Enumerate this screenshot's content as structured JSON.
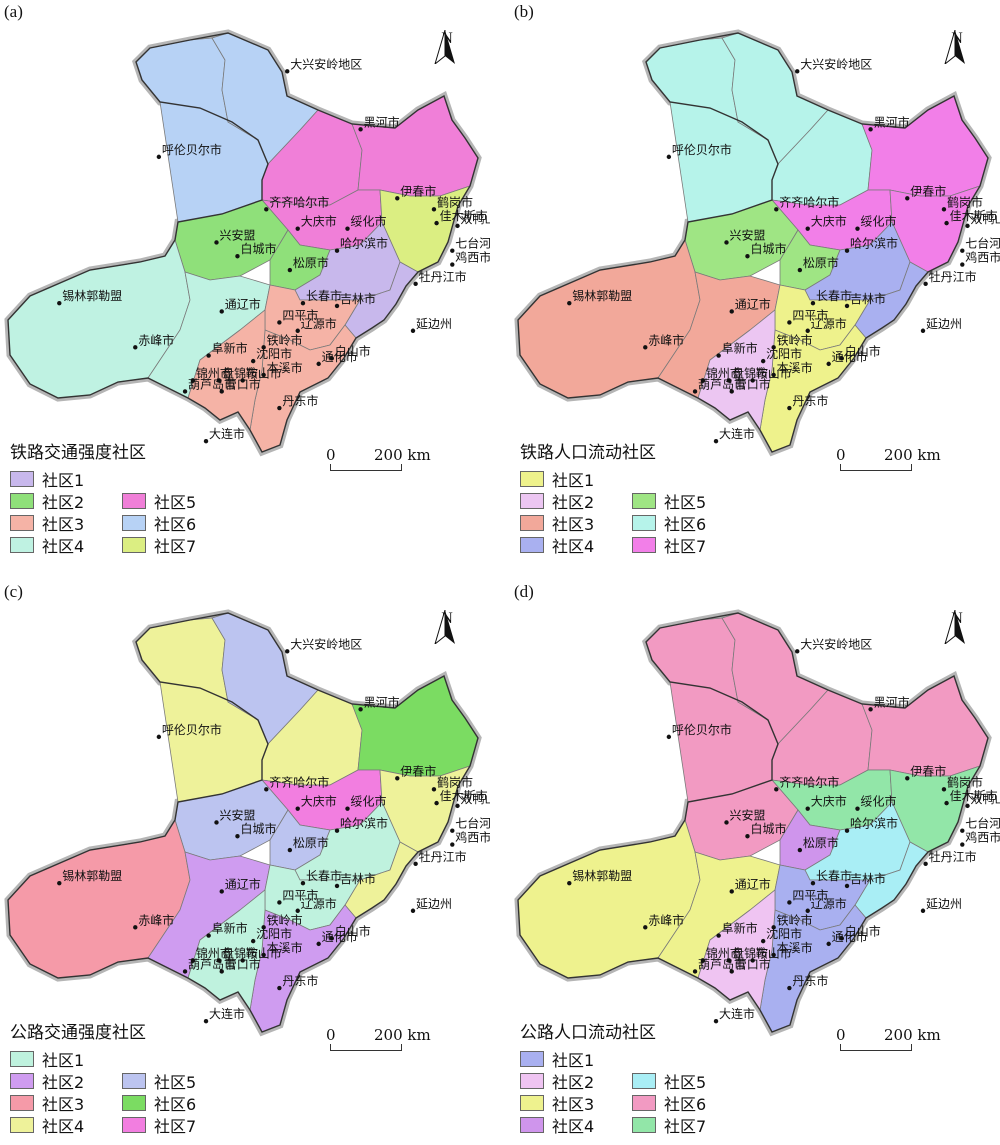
{
  "panels": [
    {
      "letter": "(a)",
      "legend_title": "铁路交通强度社区",
      "communities": [
        {
          "label": "社区1",
          "color": "#c8b8ec"
        },
        {
          "label": "社区2",
          "color": "#8fe07a"
        },
        {
          "label": "社区3",
          "color": "#f5b3a6"
        },
        {
          "label": "社区4",
          "color": "#bff2e2"
        },
        {
          "label": "社区5",
          "color": "#f07fd8"
        },
        {
          "label": "社区6",
          "color": "#b7d2f5"
        },
        {
          "label": "社区7",
          "color": "#dbee82"
        }
      ],
      "region_communities": [
        6,
        6,
        5,
        5,
        5,
        7,
        2,
        2,
        1,
        1,
        4,
        4,
        3,
        3,
        3
      ]
    },
    {
      "letter": "(b)",
      "legend_title": "铁路人口流动社区",
      "communities": [
        {
          "label": "社区1",
          "color": "#eef28c"
        },
        {
          "label": "社区2",
          "color": "#ecc6f2"
        },
        {
          "label": "社区3",
          "color": "#f2a89a"
        },
        {
          "label": "社区4",
          "color": "#a9b0f0"
        },
        {
          "label": "社区5",
          "color": "#9fe584"
        },
        {
          "label": "社区6",
          "color": "#b6f3ea"
        },
        {
          "label": "社区7",
          "color": "#f27fe8"
        }
      ],
      "region_communities": [
        6,
        6,
        6,
        7,
        7,
        7,
        5,
        5,
        4,
        4,
        3,
        3,
        1,
        1,
        2
      ]
    },
    {
      "letter": "(c)",
      "legend_title": "公路交通强度社区",
      "communities": [
        {
          "label": "社区1",
          "color": "#bff2de"
        },
        {
          "label": "社区2",
          "color": "#cf9cf0"
        },
        {
          "label": "社区3",
          "color": "#f59aa8"
        },
        {
          "label": "社区4",
          "color": "#eef29a"
        },
        {
          "label": "社区5",
          "color": "#bcc4f0"
        },
        {
          "label": "社区6",
          "color": "#7bdc62"
        },
        {
          "label": "社区7",
          "color": "#f27ee0"
        }
      ],
      "region_communities": [
        4,
        5,
        4,
        6,
        7,
        4,
        5,
        5,
        1,
        4,
        3,
        2,
        1,
        2,
        1
      ]
    },
    {
      "letter": "(d)",
      "legend_title": "公路人口流动社区",
      "communities": [
        {
          "label": "社区1",
          "color": "#a9b0f0"
        },
        {
          "label": "社区2",
          "color": "#efc4f2"
        },
        {
          "label": "社区3",
          "color": "#eef28e"
        },
        {
          "label": "社区4",
          "color": "#cf95ec"
        },
        {
          "label": "社区5",
          "color": "#a9eef5"
        },
        {
          "label": "社区6",
          "color": "#f29ac2"
        },
        {
          "label": "社区7",
          "color": "#92e6a8"
        }
      ],
      "region_communities": [
        6,
        6,
        6,
        6,
        7,
        7,
        6,
        4,
        5,
        5,
        3,
        3,
        1,
        1,
        2
      ]
    }
  ],
  "cities": [
    {
      "name": "大兴安岭地区",
      "lon": 124.7,
      "lat": 52.3
    },
    {
      "name": "黑河市",
      "lon": 127.5,
      "lat": 50.2
    },
    {
      "name": "呼伦贝尔市",
      "lon": 119.8,
      "lat": 49.2
    },
    {
      "name": "伊春市",
      "lon": 128.9,
      "lat": 47.7
    },
    {
      "name": "鹤岗市",
      "lon": 130.3,
      "lat": 47.3
    },
    {
      "name": "双鸭山市",
      "lon": 131.2,
      "lat": 46.7
    },
    {
      "name": "佳木斯市",
      "lon": 130.4,
      "lat": 46.8
    },
    {
      "name": "七台河市",
      "lon": 131.0,
      "lat": 45.8
    },
    {
      "name": "鸡西市",
      "lon": 131.0,
      "lat": 45.3
    },
    {
      "name": "齐齐哈尔市",
      "lon": 123.9,
      "lat": 47.3
    },
    {
      "name": "大庆市",
      "lon": 125.1,
      "lat": 46.6
    },
    {
      "name": "绥化市",
      "lon": 127.0,
      "lat": 46.6
    },
    {
      "name": "哈尔滨市",
      "lon": 126.6,
      "lat": 45.8
    },
    {
      "name": "牡丹江市",
      "lon": 129.6,
      "lat": 44.6
    },
    {
      "name": "兴安盟",
      "lon": 122.0,
      "lat": 46.1
    },
    {
      "name": "白城市",
      "lon": 122.8,
      "lat": 45.6
    },
    {
      "name": "松原市",
      "lon": 124.8,
      "lat": 45.1
    },
    {
      "name": "长春市",
      "lon": 125.3,
      "lat": 43.9
    },
    {
      "name": "吉林市",
      "lon": 126.6,
      "lat": 43.8
    },
    {
      "name": "延边州",
      "lon": 129.5,
      "lat": 42.9
    },
    {
      "name": "锡林郭勒盟",
      "lon": 116.0,
      "lat": 43.9
    },
    {
      "name": "通辽市",
      "lon": 122.2,
      "lat": 43.6
    },
    {
      "name": "四平市",
      "lon": 124.4,
      "lat": 43.2
    },
    {
      "name": "辽源市",
      "lon": 125.1,
      "lat": 42.9
    },
    {
      "name": "白山市",
      "lon": 126.4,
      "lat": 41.9
    },
    {
      "name": "通化市",
      "lon": 125.9,
      "lat": 41.7
    },
    {
      "name": "铁岭市",
      "lon": 123.8,
      "lat": 42.3
    },
    {
      "name": "赤峰市",
      "lon": 118.9,
      "lat": 42.3
    },
    {
      "name": "阜新市",
      "lon": 121.7,
      "lat": 42.0
    },
    {
      "name": "沈阳市",
      "lon": 123.4,
      "lat": 41.8
    },
    {
      "name": "本溪市",
      "lon": 123.8,
      "lat": 41.3
    },
    {
      "name": "盘锦市",
      "lon": 122.1,
      "lat": 41.1
    },
    {
      "name": "鞍山市",
      "lon": 123.0,
      "lat": 41.1
    },
    {
      "name": "锦州市",
      "lon": 121.1,
      "lat": 41.1
    },
    {
      "name": "营口市",
      "lon": 122.2,
      "lat": 40.7
    },
    {
      "name": "丹东市",
      "lon": 124.4,
      "lat": 40.1
    },
    {
      "name": "葫芦岛市",
      "lon": 120.8,
      "lat": 40.7
    },
    {
      "name": "大连市",
      "lon": 121.6,
      "lat": 38.9
    }
  ],
  "north_letter": "N",
  "scale": {
    "zero": "0",
    "distance": "200 km"
  }
}
